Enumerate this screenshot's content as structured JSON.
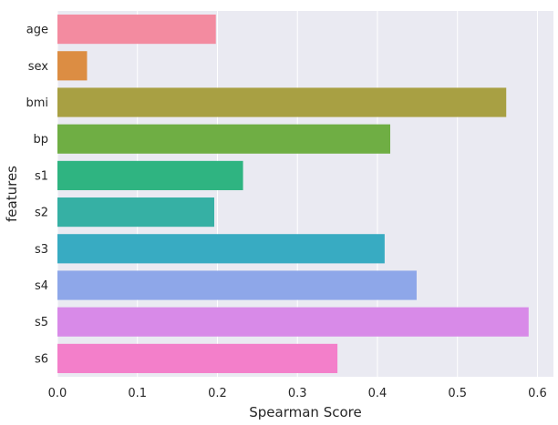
{
  "chart_data": {
    "type": "bar",
    "orientation": "horizontal",
    "categories": [
      "age",
      "sex",
      "bmi",
      "bp",
      "s1",
      "s2",
      "s3",
      "s4",
      "s5",
      "s6"
    ],
    "values": [
      0.198,
      0.037,
      0.561,
      0.416,
      0.232,
      0.196,
      0.409,
      0.449,
      0.589,
      0.35
    ],
    "colors": [
      "#f38ba0",
      "#dc8d43",
      "#a8a043",
      "#6fae44",
      "#2fb481",
      "#36b0a4",
      "#38abc2",
      "#8ea7e9",
      "#d88ae8",
      "#f37fca"
    ],
    "title": "",
    "xlabel": "Spearman Score",
    "ylabel": "features",
    "xlim": [
      0,
      0.62
    ],
    "xticks": [
      "0.0",
      "0.1",
      "0.2",
      "0.3",
      "0.4",
      "0.5",
      "0.6"
    ],
    "grid": true,
    "legend": false,
    "background_color": "#eaeaf2",
    "grid_color": "#ffffff"
  }
}
